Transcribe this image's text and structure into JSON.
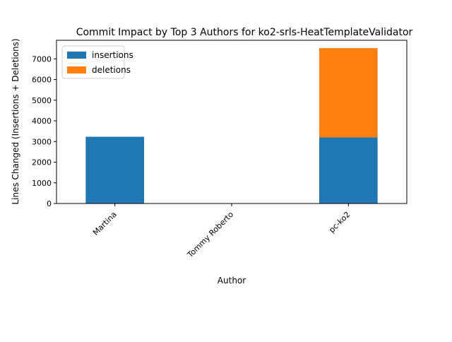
{
  "chart_data": {
    "type": "bar",
    "stacked": true,
    "title": "Commit Impact by Top 3 Authors for ko2-srls-HeatTemplateValidator",
    "xlabel": "Author",
    "ylabel": "Lines Changed (Insertions + Deletions)",
    "categories": [
      "Martina",
      "Tommy Roberto",
      "pc-ko2"
    ],
    "series": [
      {
        "name": "insertions",
        "color": "#1f77b4",
        "values": [
          3230,
          0,
          3200
        ]
      },
      {
        "name": "deletions",
        "color": "#ff7f0e",
        "values": [
          0,
          0,
          4320
        ]
      }
    ],
    "ylim": [
      0,
      7900
    ],
    "yticks": [
      0,
      1000,
      2000,
      3000,
      4000,
      5000,
      6000,
      7000
    ],
    "legend_position": "top-left",
    "grid": false
  }
}
